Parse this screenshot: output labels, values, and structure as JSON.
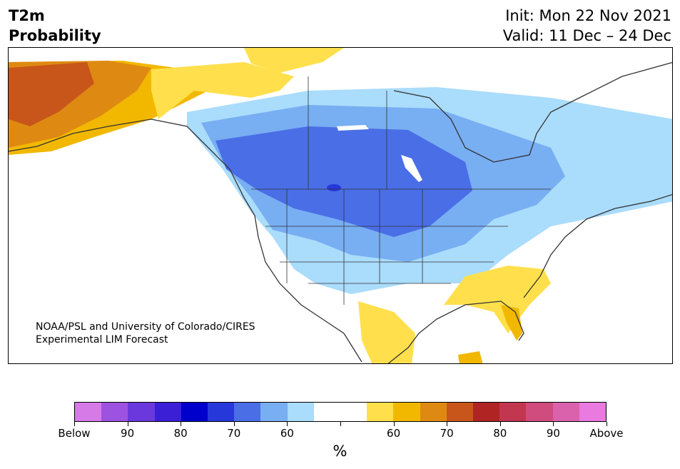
{
  "title": {
    "line1": "T2m",
    "line2": "Probability"
  },
  "header_right": {
    "init": "Init: Mon 22 Nov 2021",
    "valid": "Valid: 11 Dec – 24 Dec"
  },
  "credit": {
    "line1": "NOAA/PSL and University of Colorado/CIRES",
    "line2": "Experimental LIM Forecast"
  },
  "colorbar": {
    "colors": [
      "#d67ae8",
      "#9e52e0",
      "#6a38dc",
      "#3a1fd6",
      "#0000cc",
      "#2638da",
      "#4a6ee6",
      "#78aef2",
      "#aadcfc",
      "#ffffff",
      "#ffffff",
      "#ffe04c",
      "#f2b800",
      "#de8a12",
      "#c8561a",
      "#b02424",
      "#c23650",
      "#d04c7e",
      "#da62ac",
      "#e87ae0"
    ],
    "tick_labels": [
      "Below",
      "90",
      "80",
      "70",
      "60",
      "",
      "60",
      "70",
      "80",
      "90",
      "Above"
    ],
    "unit_label": "%"
  },
  "map_colors": {
    "land_white": "#ffffff",
    "light_blue": "#aadcfc",
    "blue": "#78aef2",
    "mid_blue": "#4a6ee6",
    "dark_blue": "#2638da",
    "yellow": "#ffe04c",
    "gold": "#f2b800",
    "orange": "#de8a12",
    "dark_orange": "#c8561a",
    "outline": "#333333"
  }
}
